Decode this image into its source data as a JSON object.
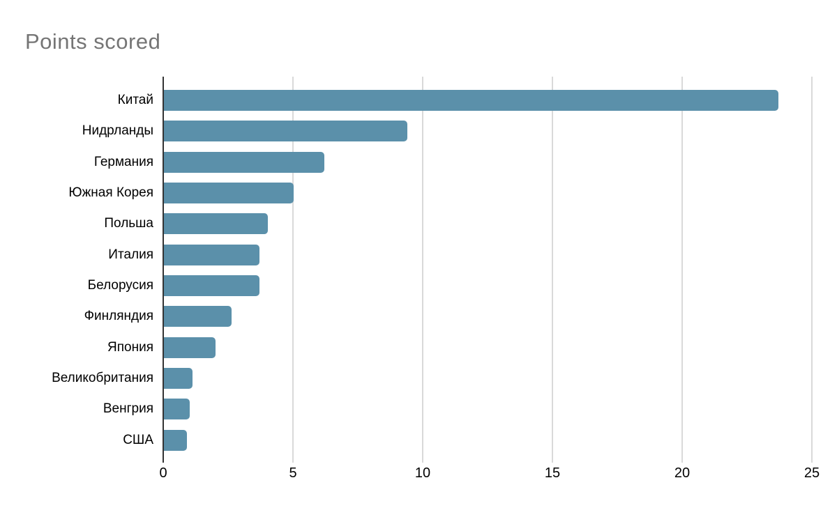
{
  "title": "Points scored",
  "colors": {
    "bar": "#5b90aa",
    "title_text": "#757575",
    "axis_text": "#000000",
    "gridline": "#d9d9d9",
    "axis_line": "#333333",
    "background": "#ffffff"
  },
  "chart_data": {
    "type": "bar",
    "orientation": "horizontal",
    "title": "Points scored",
    "categories": [
      "Китай",
      "Нидрланды",
      "Германия",
      "Южная Корея",
      "Польша",
      "Италия",
      "Белорусия",
      "Финляндия",
      "Япония",
      "Великобритания",
      "Венгрия",
      "США"
    ],
    "values": [
      23.7,
      9.4,
      6.2,
      5,
      4,
      3.7,
      3.7,
      2.6,
      2,
      1.1,
      1,
      0.9
    ],
    "xlabel": "",
    "ylabel": "",
    "xlim": [
      0,
      25
    ],
    "xticks": [
      0,
      5,
      10,
      15,
      20,
      25
    ],
    "grid": true,
    "legend": "none"
  }
}
